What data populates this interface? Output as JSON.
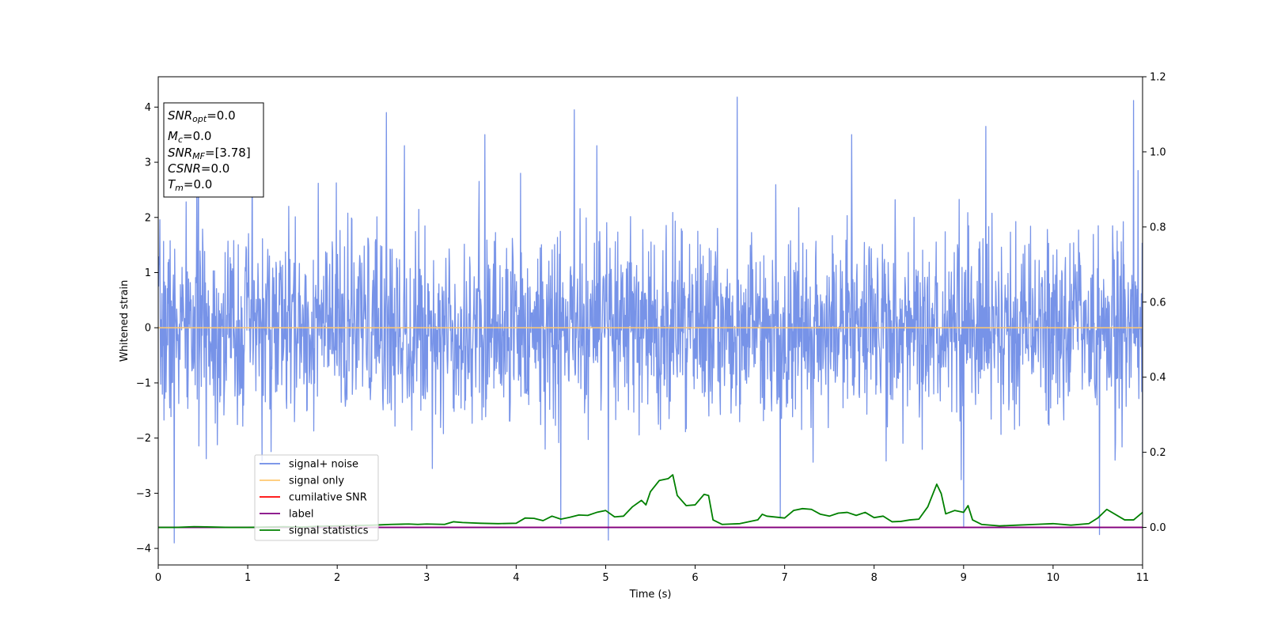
{
  "chart_data": {
    "type": "line",
    "title": "",
    "xlabel": "Time (s)",
    "ylabel": "Whitened strain",
    "xlim": [
      0,
      11
    ],
    "ylim": [
      -4.3,
      4.55
    ],
    "y2lim": [
      -0.1,
      1.2
    ],
    "x_ticks": [
      0,
      1,
      2,
      3,
      4,
      5,
      6,
      7,
      8,
      9,
      10,
      11
    ],
    "y_ticks": [
      -4,
      -3,
      -2,
      -1,
      0,
      1,
      2,
      3,
      4
    ],
    "y2_ticks": [
      0.0,
      0.2,
      0.4,
      0.6,
      0.8,
      1.0,
      1.2
    ],
    "y_tick_labels": [
      "−4",
      "−3",
      "−2",
      "−1",
      "0",
      "1",
      "2",
      "3",
      "4"
    ],
    "y2_tick_labels": [
      "0.0",
      "0.2",
      "0.4",
      "0.6",
      "0.8",
      "1.0",
      "1.2"
    ],
    "grid": false,
    "legend_position": "lower-left",
    "noise": {
      "name": "signal+ noise",
      "color": "#6b8ae6",
      "points": 2400,
      "seed": 7,
      "std": 0.85,
      "range": [
        -3.9,
        4.2
      ],
      "spikes": [
        [
          0.18,
          -3.9
        ],
        [
          0.45,
          3.35
        ],
        [
          1.05,
          3.3
        ],
        [
          2.55,
          3.9
        ],
        [
          2.75,
          3.3
        ],
        [
          3.65,
          3.5
        ],
        [
          4.05,
          2.8
        ],
        [
          4.5,
          -3.55
        ],
        [
          4.65,
          3.95
        ],
        [
          4.9,
          3.3
        ],
        [
          5.03,
          -3.85
        ],
        [
          6.47,
          4.18
        ],
        [
          6.95,
          -3.45
        ],
        [
          7.75,
          3.5
        ],
        [
          9.0,
          -3.6
        ],
        [
          9.25,
          3.65
        ],
        [
          10.52,
          -3.75
        ],
        [
          10.9,
          4.12
        ],
        [
          10.95,
          2.85
        ]
      ]
    },
    "signal_only": {
      "name": "signal only",
      "color": "#ffc870",
      "value": 0.0
    },
    "cumulative_snr": {
      "name": "cumilative SNR",
      "color": "#ff0000",
      "value": 0.0
    },
    "label_line": {
      "name": "label",
      "color": "#800080",
      "value": 0.0
    },
    "signal_statistics": {
      "name": "signal statistics",
      "color": "#008000",
      "x": [
        0,
        0.2,
        0.4,
        0.6,
        0.8,
        1.0,
        1.2,
        1.4,
        1.6,
        1.8,
        2.0,
        2.2,
        2.4,
        2.6,
        2.8,
        2.9,
        3.0,
        3.2,
        3.3,
        3.4,
        3.6,
        3.8,
        4.0,
        4.1,
        4.2,
        4.3,
        4.4,
        4.5,
        4.6,
        4.7,
        4.8,
        4.9,
        5.0,
        5.1,
        5.2,
        5.3,
        5.4,
        5.45,
        5.5,
        5.6,
        5.7,
        5.75,
        5.8,
        5.9,
        6.0,
        6.1,
        6.15,
        6.2,
        6.3,
        6.5,
        6.7,
        6.75,
        6.8,
        7.0,
        7.1,
        7.2,
        7.3,
        7.4,
        7.5,
        7.6,
        7.7,
        7.8,
        7.9,
        8.0,
        8.1,
        8.2,
        8.3,
        8.4,
        8.5,
        8.6,
        8.7,
        8.75,
        8.8,
        8.9,
        9.0,
        9.05,
        9.1,
        9.2,
        9.4,
        9.6,
        9.8,
        10.0,
        10.2,
        10.4,
        10.5,
        10.6,
        10.8,
        10.9,
        11.0
      ],
      "y": [
        0.0,
        0.0,
        0.002,
        0.001,
        0.0,
        0.0,
        0.001,
        0.002,
        0.001,
        0.003,
        0.004,
        0.005,
        0.006,
        0.008,
        0.009,
        0.008,
        0.009,
        0.008,
        0.015,
        0.013,
        0.011,
        0.01,
        0.011,
        0.025,
        0.024,
        0.018,
        0.03,
        0.022,
        0.027,
        0.033,
        0.032,
        0.04,
        0.045,
        0.028,
        0.03,
        0.055,
        0.072,
        0.06,
        0.095,
        0.125,
        0.13,
        0.14,
        0.085,
        0.058,
        0.06,
        0.088,
        0.085,
        0.02,
        0.008,
        0.01,
        0.02,
        0.035,
        0.03,
        0.025,
        0.045,
        0.05,
        0.048,
        0.035,
        0.03,
        0.038,
        0.04,
        0.032,
        0.04,
        0.026,
        0.03,
        0.015,
        0.016,
        0.02,
        0.022,
        0.055,
        0.115,
        0.09,
        0.036,
        0.045,
        0.04,
        0.058,
        0.02,
        0.008,
        0.004,
        0.006,
        0.008,
        0.01,
        0.006,
        0.01,
        0.025,
        0.048,
        0.02,
        0.02,
        0.04
      ]
    }
  },
  "annotation": {
    "lines": [
      {
        "name": "SNR",
        "sub": "opt",
        "value": "=0.0"
      },
      {
        "name": "M",
        "sub": "c",
        "value": "=0.0"
      },
      {
        "name": "SNR",
        "sub": "MF",
        "value": "=[3.78]"
      },
      {
        "name": "CSNR",
        "sub": "",
        "value": "=0.0"
      },
      {
        "name": "T",
        "sub": "m",
        "value": "=0.0"
      }
    ]
  }
}
